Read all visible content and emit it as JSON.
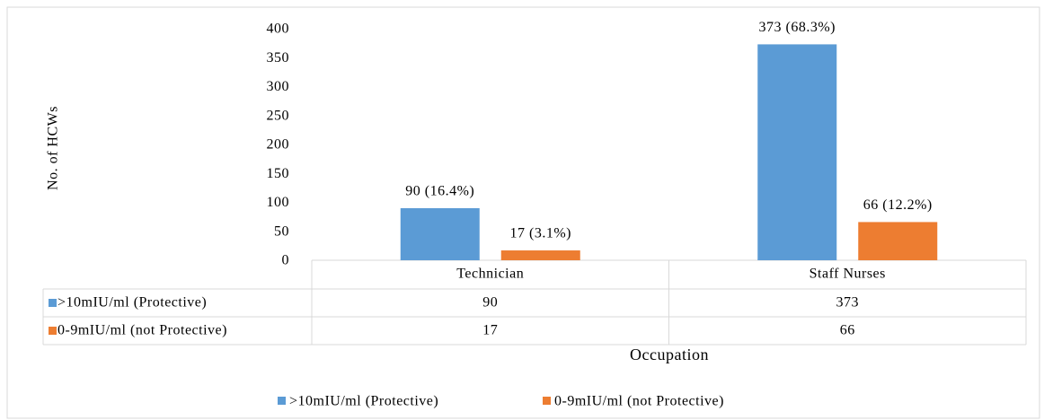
{
  "chart_data": {
    "type": "bar",
    "y_label": "No. of HCWs",
    "x_label": "Occupation",
    "categories": [
      "Technician",
      "Staff Nurses"
    ],
    "series": [
      {
        "name": ">10mIU/ml (Protective)",
        "color": "#5b9bd5",
        "values": [
          90,
          373
        ],
        "value_labels": [
          "90 (16.4%)",
          "373 (68.3%)"
        ]
      },
      {
        "name": "0-9mIU/ml (not Protective)",
        "color": "#ed7d31",
        "values": [
          17,
          66
        ],
        "value_labels": [
          "17 (3.1%)",
          "66 (12.2%)"
        ]
      }
    ],
    "ylim": [
      0,
      400
    ],
    "yticks": [
      0,
      50,
      100,
      150,
      200,
      250,
      300,
      350,
      400
    ],
    "grid": false,
    "legend": "bottom",
    "data_table": true
  }
}
